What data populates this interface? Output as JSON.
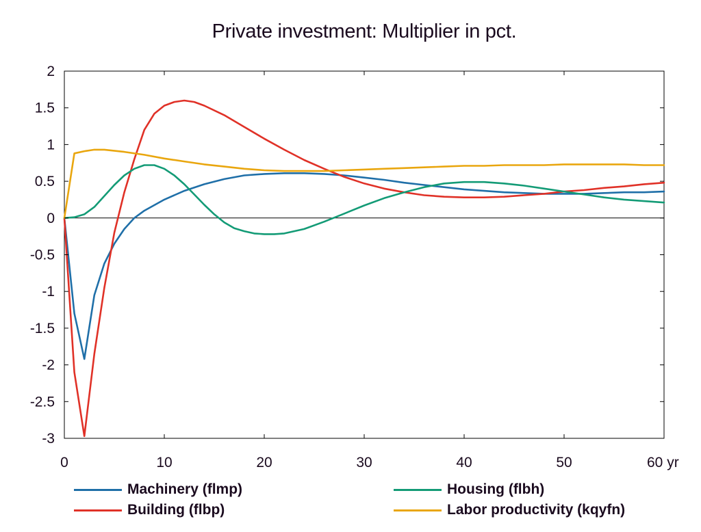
{
  "chart_data": {
    "type": "line",
    "title": "Private investment: Multiplier in pct.",
    "xlabel": "",
    "ylabel": "",
    "x_unit_label": "yr",
    "xlim": [
      0,
      60
    ],
    "ylim": [
      -3,
      2
    ],
    "xticks": [
      0,
      10,
      20,
      30,
      40,
      50,
      60
    ],
    "xtick_labels": [
      "0",
      "10",
      "20",
      "30",
      "40",
      "50",
      "60 yr"
    ],
    "yticks": [
      2,
      1.5,
      1,
      0.5,
      0,
      -0.5,
      -1,
      -1.5,
      -2,
      -2.5,
      -3
    ],
    "ytick_labels": [
      "2",
      "1.5",
      "1",
      "0.5",
      "0",
      "-0.5",
      "-1",
      "-1.5",
      "-2",
      "-2.5",
      "-3"
    ],
    "grid": false,
    "legend_position": "bottom",
    "series": [
      {
        "name": "Machinery (flmp)",
        "color": "#1f6fa8",
        "points": [
          [
            0,
            0
          ],
          [
            1,
            -1.3
          ],
          [
            2,
            -1.92
          ],
          [
            3,
            -1.05
          ],
          [
            4,
            -0.62
          ],
          [
            5,
            -0.35
          ],
          [
            6,
            -0.15
          ],
          [
            7,
            0.0
          ],
          [
            8,
            0.1
          ],
          [
            10,
            0.25
          ],
          [
            12,
            0.37
          ],
          [
            14,
            0.46
          ],
          [
            16,
            0.53
          ],
          [
            18,
            0.58
          ],
          [
            20,
            0.6
          ],
          [
            22,
            0.61
          ],
          [
            24,
            0.61
          ],
          [
            26,
            0.6
          ],
          [
            28,
            0.58
          ],
          [
            30,
            0.55
          ],
          [
            32,
            0.52
          ],
          [
            34,
            0.48
          ],
          [
            36,
            0.45
          ],
          [
            38,
            0.42
          ],
          [
            40,
            0.39
          ],
          [
            42,
            0.37
          ],
          [
            44,
            0.35
          ],
          [
            46,
            0.34
          ],
          [
            48,
            0.33
          ],
          [
            50,
            0.33
          ],
          [
            52,
            0.33
          ],
          [
            54,
            0.34
          ],
          [
            56,
            0.35
          ],
          [
            58,
            0.35
          ],
          [
            60,
            0.36
          ]
        ]
      },
      {
        "name": "Building (flbp)",
        "color": "#e03127",
        "points": [
          [
            0,
            0
          ],
          [
            1,
            -2.1
          ],
          [
            2,
            -2.97
          ],
          [
            3,
            -1.85
          ],
          [
            4,
            -0.95
          ],
          [
            5,
            -0.2
          ],
          [
            6,
            0.35
          ],
          [
            7,
            0.8
          ],
          [
            8,
            1.2
          ],
          [
            9,
            1.42
          ],
          [
            10,
            1.53
          ],
          [
            11,
            1.58
          ],
          [
            12,
            1.6
          ],
          [
            13,
            1.58
          ],
          [
            14,
            1.53
          ],
          [
            16,
            1.4
          ],
          [
            18,
            1.24
          ],
          [
            20,
            1.08
          ],
          [
            22,
            0.93
          ],
          [
            24,
            0.79
          ],
          [
            26,
            0.67
          ],
          [
            28,
            0.56
          ],
          [
            30,
            0.47
          ],
          [
            32,
            0.4
          ],
          [
            34,
            0.35
          ],
          [
            36,
            0.31
          ],
          [
            38,
            0.29
          ],
          [
            40,
            0.28
          ],
          [
            42,
            0.28
          ],
          [
            44,
            0.29
          ],
          [
            46,
            0.31
          ],
          [
            48,
            0.33
          ],
          [
            50,
            0.36
          ],
          [
            52,
            0.38
          ],
          [
            54,
            0.41
          ],
          [
            56,
            0.43
          ],
          [
            58,
            0.46
          ],
          [
            60,
            0.48
          ]
        ]
      },
      {
        "name": "Housing (flbh)",
        "color": "#139b76",
        "points": [
          [
            0,
            0
          ],
          [
            1,
            0.01
          ],
          [
            2,
            0.05
          ],
          [
            3,
            0.15
          ],
          [
            4,
            0.3
          ],
          [
            5,
            0.45
          ],
          [
            6,
            0.58
          ],
          [
            7,
            0.67
          ],
          [
            8,
            0.72
          ],
          [
            9,
            0.72
          ],
          [
            10,
            0.67
          ],
          [
            11,
            0.58
          ],
          [
            12,
            0.46
          ],
          [
            13,
            0.32
          ],
          [
            14,
            0.18
          ],
          [
            15,
            0.05
          ],
          [
            16,
            -0.06
          ],
          [
            17,
            -0.14
          ],
          [
            18,
            -0.18
          ],
          [
            19,
            -0.21
          ],
          [
            20,
            -0.22
          ],
          [
            21,
            -0.22
          ],
          [
            22,
            -0.21
          ],
          [
            24,
            -0.15
          ],
          [
            26,
            -0.05
          ],
          [
            28,
            0.06
          ],
          [
            30,
            0.17
          ],
          [
            32,
            0.27
          ],
          [
            34,
            0.35
          ],
          [
            36,
            0.42
          ],
          [
            38,
            0.47
          ],
          [
            40,
            0.49
          ],
          [
            42,
            0.49
          ],
          [
            44,
            0.47
          ],
          [
            46,
            0.44
          ],
          [
            48,
            0.4
          ],
          [
            50,
            0.36
          ],
          [
            52,
            0.32
          ],
          [
            54,
            0.28
          ],
          [
            56,
            0.25
          ],
          [
            58,
            0.23
          ],
          [
            60,
            0.21
          ]
        ]
      },
      {
        "name": "Labor productivity (kqyfn)",
        "color": "#e9a60e",
        "points": [
          [
            0,
            0
          ],
          [
            1,
            0.88
          ],
          [
            2,
            0.91
          ],
          [
            3,
            0.93
          ],
          [
            4,
            0.93
          ],
          [
            6,
            0.9
          ],
          [
            8,
            0.86
          ],
          [
            10,
            0.81
          ],
          [
            12,
            0.77
          ],
          [
            14,
            0.73
          ],
          [
            16,
            0.7
          ],
          [
            18,
            0.67
          ],
          [
            20,
            0.65
          ],
          [
            22,
            0.64
          ],
          [
            24,
            0.64
          ],
          [
            26,
            0.64
          ],
          [
            28,
            0.65
          ],
          [
            30,
            0.66
          ],
          [
            32,
            0.67
          ],
          [
            34,
            0.68
          ],
          [
            36,
            0.69
          ],
          [
            38,
            0.7
          ],
          [
            40,
            0.71
          ],
          [
            42,
            0.71
          ],
          [
            44,
            0.72
          ],
          [
            46,
            0.72
          ],
          [
            48,
            0.72
          ],
          [
            50,
            0.73
          ],
          [
            52,
            0.73
          ],
          [
            54,
            0.73
          ],
          [
            56,
            0.73
          ],
          [
            58,
            0.72
          ],
          [
            60,
            0.72
          ]
        ]
      }
    ]
  },
  "legend": {
    "items": [
      {
        "label": "Machinery (flmp)",
        "color": "#1f6fa8"
      },
      {
        "label": "Housing (flbh)",
        "color": "#139b76"
      },
      {
        "label": "Building (flbp)",
        "color": "#e03127"
      },
      {
        "label": "Labor productivity (kqyfn)",
        "color": "#e9a60e"
      }
    ]
  }
}
